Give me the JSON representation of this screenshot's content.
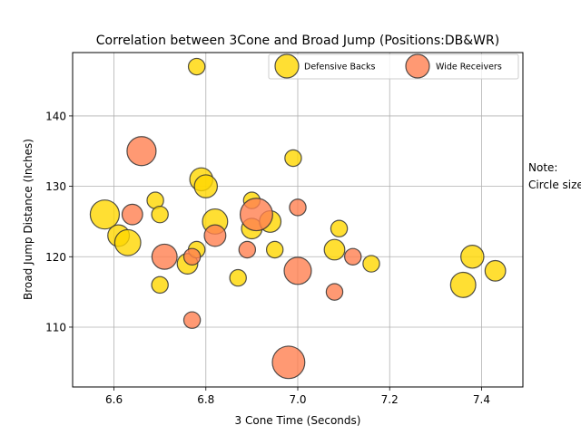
{
  "chart_data": {
    "type": "scatter",
    "title": "Correlation between 3Cone and Broad Jump (Positions:DB&WR)",
    "xlabel": "3 Cone Time (Seconds)",
    "ylabel": "Broad Jump Distance (Inches)",
    "xlim": [
      6.51,
      7.49
    ],
    "ylim": [
      101.5,
      149
    ],
    "xticks": [
      "6.6",
      "6.8",
      "7.0",
      "7.2",
      "7.4"
    ],
    "xtick_values": [
      6.6,
      6.8,
      7.0,
      7.2,
      7.4
    ],
    "yticks": [
      "110",
      "120",
      "130",
      "140"
    ],
    "ytick_values": [
      110,
      120,
      130,
      140
    ],
    "grid": true,
    "legend_position": "top-right",
    "note_text": "Note:\nCircle size",
    "colors": {
      "Defensive Backs": "#ffd700",
      "Wide Receivers": "#ff7f50"
    },
    "series": [
      {
        "name": "Defensive Backs",
        "color": "#ffd700",
        "x": [
          6.58,
          6.61,
          6.63,
          6.69,
          6.7,
          6.7,
          6.76,
          6.78,
          6.78,
          6.79,
          6.8,
          6.82,
          6.87,
          6.9,
          6.9,
          6.94,
          6.95,
          6.99,
          7.08,
          7.09,
          7.16,
          7.36,
          7.38,
          7.43
        ],
        "y": [
          126,
          123,
          122,
          128,
          126,
          116,
          119,
          147,
          121,
          131,
          130,
          125,
          117,
          128,
          124,
          125,
          121,
          134,
          121,
          124,
          119,
          116,
          120,
          118
        ],
        "size": [
          4,
          2.2,
          3.2,
          1.3,
          1.3,
          1.3,
          2.0,
          1.3,
          1.3,
          2.5,
          2.5,
          3.0,
          1.3,
          1.3,
          2.0,
          2.2,
          1.3,
          1.3,
          2.0,
          1.3,
          1.3,
          3.0,
          2.5,
          2.0
        ]
      },
      {
        "name": "Wide Receivers",
        "color": "#ff7f50",
        "x": [
          6.64,
          6.66,
          6.71,
          6.77,
          6.77,
          6.82,
          6.89,
          6.91,
          6.98,
          7.0,
          7.0,
          7.08,
          7.12
        ],
        "y": [
          126,
          135,
          120,
          120,
          111,
          123,
          121,
          126,
          105,
          127,
          118,
          115,
          120
        ],
        "size": [
          2.0,
          4.0,
          3.0,
          1.3,
          1.3,
          2.2,
          1.3,
          5.0,
          5.0,
          1.3,
          3.5,
          1.3,
          1.3
        ]
      }
    ]
  }
}
